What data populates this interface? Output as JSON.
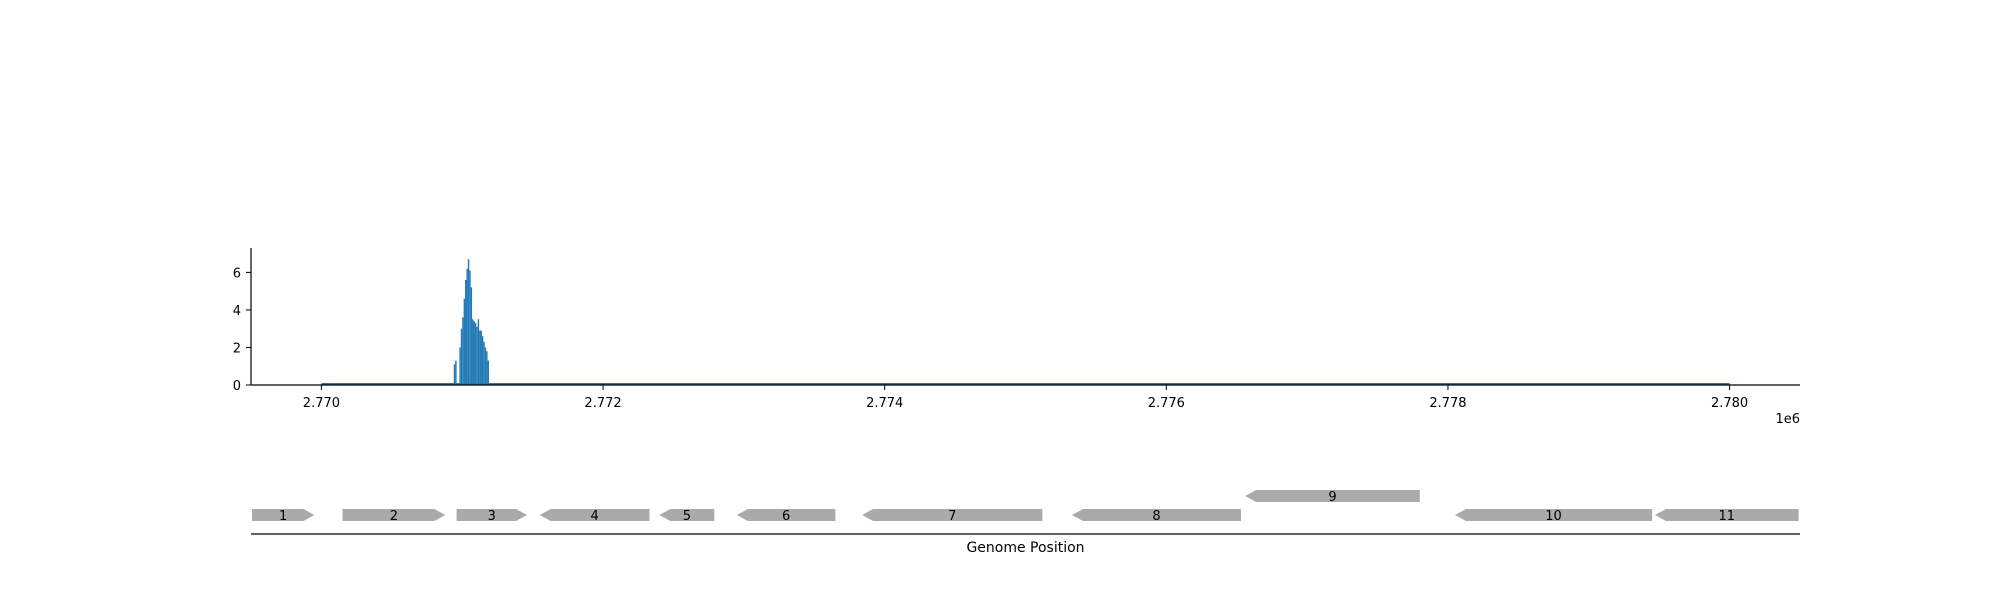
{
  "chart_data": {
    "type": "area",
    "title": "",
    "xlabel": "",
    "ylabel": "",
    "x_offset_label": "1e6",
    "xlim": [
      2769500,
      2780500
    ],
    "ylim": [
      0,
      7.3
    ],
    "x_ticks": [
      2770000,
      2772000,
      2774000,
      2776000,
      2778000,
      2780000
    ],
    "x_tick_labels": [
      "2.770",
      "2.772",
      "2.774",
      "2.776",
      "2.778",
      "2.780"
    ],
    "y_ticks": [
      0,
      2,
      4,
      6
    ],
    "y_tick_labels": [
      "0",
      "2",
      "4",
      "6"
    ],
    "grid": false,
    "legend": "none",
    "series_color": "#1f77b4",
    "x_range": [
      2770000,
      2780000
    ],
    "coverage": {
      "x": [
        2770000,
        2770930,
        2770940,
        2770950,
        2770960,
        2770970,
        2770980,
        2770990,
        2771000,
        2771010,
        2771020,
        2771030,
        2771040,
        2771050,
        2771060,
        2771070,
        2771080,
        2771090,
        2771100,
        2771110,
        2771120,
        2771130,
        2771140,
        2771150,
        2771160,
        2771170,
        2771180,
        2771190,
        2771200,
        2771210,
        2771220,
        2771230,
        2780000
      ],
      "y": [
        0,
        0,
        1.1,
        1.3,
        0,
        0,
        2.0,
        3.0,
        3.6,
        4.6,
        5.6,
        6.2,
        6.7,
        6.1,
        5.2,
        3.5,
        3.4,
        3.3,
        3.1,
        3.5,
        2.9,
        2.9,
        2.6,
        2.3,
        2.0,
        1.8,
        1.3,
        0,
        0,
        0,
        0,
        0,
        0
      ]
    },
    "genome_axis_label": "Genome Position",
    "genes": [
      {
        "label": "1",
        "start": 2769500,
        "end": 2769950,
        "strand": "+",
        "track": 0
      },
      {
        "label": "2",
        "start": 2770150,
        "end": 2770880,
        "strand": "+",
        "track": 0
      },
      {
        "label": "3",
        "start": 2770960,
        "end": 2771460,
        "strand": "+",
        "track": 0
      },
      {
        "label": "4",
        "start": 2771550,
        "end": 2772330,
        "strand": "-",
        "track": 0
      },
      {
        "label": "5",
        "start": 2772400,
        "end": 2772790,
        "strand": "-",
        "track": 0
      },
      {
        "label": "6",
        "start": 2772950,
        "end": 2773650,
        "strand": "-",
        "track": 0
      },
      {
        "label": "7",
        "start": 2773840,
        "end": 2775120,
        "strand": "-",
        "track": 0
      },
      {
        "label": "8",
        "start": 2775330,
        "end": 2776530,
        "strand": "-",
        "track": 0
      },
      {
        "label": "9",
        "start": 2776560,
        "end": 2777800,
        "strand": "-",
        "track": 1
      },
      {
        "label": "10",
        "start": 2778050,
        "end": 2779450,
        "strand": "-",
        "track": 0
      },
      {
        "label": "11",
        "start": 2779470,
        "end": 2780490,
        "strand": "-",
        "track": 0
      }
    ]
  }
}
